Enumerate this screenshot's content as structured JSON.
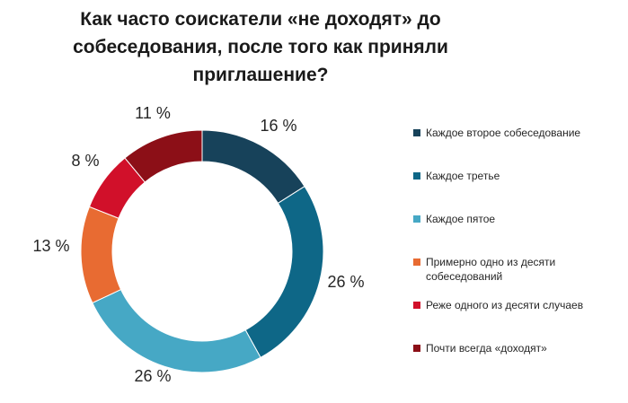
{
  "chart_data": {
    "type": "pie",
    "variant": "donut",
    "title_lines": [
      "Как часто соискатели «не доходят» до",
      "собеседования, после того как приняли",
      "приглашение?"
    ],
    "categories": [
      "Каждое второе собеседование",
      "Каждое третье",
      "Каждое пятое",
      "Примерно одно из десяти собеседований",
      "Реже одного из десяти случаев",
      "Почти всегда «доходят»"
    ],
    "values": [
      16,
      26,
      26,
      13,
      8,
      11
    ],
    "labels": [
      "16 %",
      "26 %",
      "26 %",
      "13 %",
      "8 %",
      "11 %"
    ],
    "colors": [
      "#17425a",
      "#0e6787",
      "#46a8c5",
      "#e86b32",
      "#d1102a",
      "#8c0f17"
    ],
    "legend_position": "right",
    "grid": false
  },
  "legend": {
    "items": [
      {
        "lines": [
          "Каждое второе собеседование"
        ]
      },
      {
        "lines": [
          "Каждое третье"
        ]
      },
      {
        "lines": [
          "Каждое пятое"
        ]
      },
      {
        "lines": [
          "Примерно одно из десяти",
          "собеседований"
        ]
      },
      {
        "lines": [
          "Реже одного из десяти случаев"
        ]
      },
      {
        "lines": [
          "Почти всегда «доходят»"
        ]
      }
    ]
  }
}
